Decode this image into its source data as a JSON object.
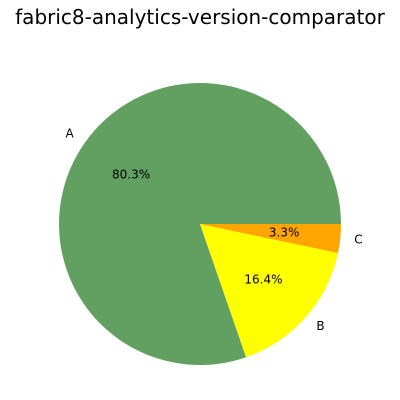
{
  "chart_data": {
    "type": "pie",
    "title": "fabric8-analytics-version-comparator",
    "categories": [
      "A",
      "B",
      "C"
    ],
    "values": [
      80.3,
      16.4,
      3.3
    ],
    "percent_labels": [
      "80.3%",
      "16.4%",
      "3.3%"
    ],
    "colors": [
      "#61a060",
      "#ffff00",
      "#ffa500"
    ],
    "start_angle_deg": 0,
    "direction": "counterclockwise"
  }
}
